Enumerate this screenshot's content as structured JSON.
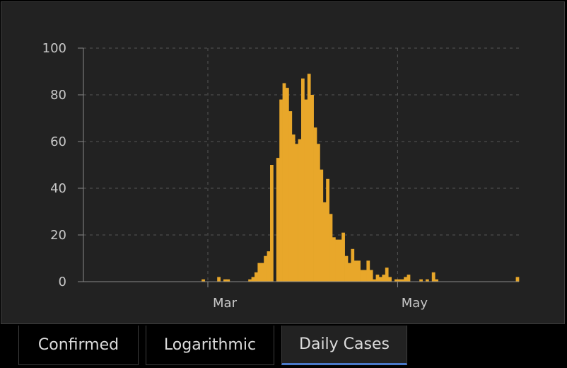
{
  "chart_data": {
    "type": "bar",
    "x_unit": "day",
    "series_color": "#e8a72a",
    "ylim": [
      0,
      100
    ],
    "yticks": [
      0,
      20,
      40,
      60,
      80,
      100
    ],
    "xticks": [
      {
        "label": "Mar",
        "day": 40
      },
      {
        "label": "May",
        "day": 101
      }
    ],
    "grid": true,
    "values": [
      0,
      0,
      0,
      0,
      0,
      0,
      0,
      0,
      0,
      0,
      0,
      0,
      0,
      0,
      0,
      0,
      0,
      0,
      0,
      0,
      0,
      0,
      0,
      0,
      0,
      0,
      0,
      0,
      0,
      0,
      0,
      0,
      0,
      0,
      0,
      0,
      0,
      0,
      1,
      0,
      0,
      0,
      0,
      2,
      0,
      1,
      1,
      0,
      0,
      0,
      0,
      0,
      0,
      1,
      2,
      4,
      8,
      8,
      11,
      13,
      50,
      0,
      53,
      78,
      85,
      83,
      73,
      63,
      59,
      61,
      87,
      78,
      89,
      80,
      66,
      59,
      48,
      34,
      44,
      29,
      19,
      18,
      18,
      21,
      11,
      8,
      14,
      9,
      9,
      5,
      5,
      9,
      5,
      1,
      3,
      2,
      3,
      6,
      2,
      0,
      1,
      1,
      1,
      2,
      3,
      0,
      0,
      0,
      1,
      0,
      1,
      0,
      4,
      1,
      0,
      0,
      0,
      0,
      0,
      0,
      0,
      0,
      0,
      0,
      0,
      0,
      0,
      0,
      0,
      0,
      0,
      0,
      0,
      0,
      0,
      0,
      0,
      0,
      0,
      2
    ]
  },
  "tabs": [
    {
      "label": "Confirmed",
      "active": false
    },
    {
      "label": "Logarithmic",
      "active": false
    },
    {
      "label": "Daily Cases",
      "active": true
    }
  ]
}
